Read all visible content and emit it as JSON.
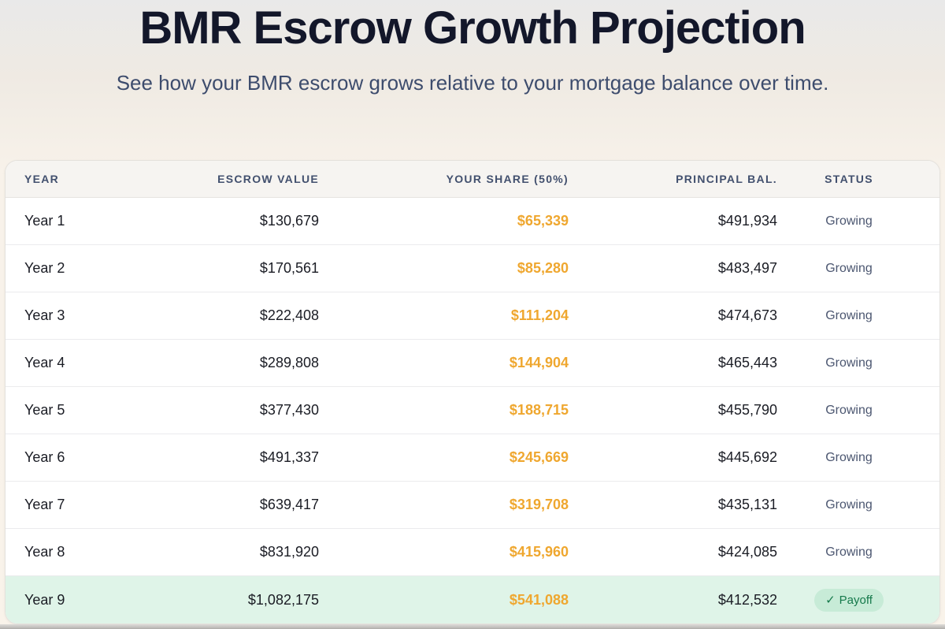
{
  "page": {
    "title": "BMR Escrow Growth Projection",
    "subtitle": "See how your BMR escrow grows relative to your mortgage balance over time."
  },
  "colors": {
    "share_amber": "#EFA72F",
    "payoff_green": "#15794B",
    "payoff_badge_bg": "#C7EBD7",
    "payoff_row_bg": "#DFF4E8",
    "header_text": "#42506E"
  },
  "table": {
    "columns": [
      "YEAR",
      "ESCROW VALUE",
      "YOUR SHARE (50%)",
      "PRINCIPAL BAL.",
      "STATUS"
    ],
    "rows": [
      {
        "year": "Year 1",
        "escrow": "$130,679",
        "share": "$65,339",
        "principal": "$491,934",
        "status": "Growing",
        "payoff": false
      },
      {
        "year": "Year 2",
        "escrow": "$170,561",
        "share": "$85,280",
        "principal": "$483,497",
        "status": "Growing",
        "payoff": false
      },
      {
        "year": "Year 3",
        "escrow": "$222,408",
        "share": "$111,204",
        "principal": "$474,673",
        "status": "Growing",
        "payoff": false
      },
      {
        "year": "Year 4",
        "escrow": "$289,808",
        "share": "$144,904",
        "principal": "$465,443",
        "status": "Growing",
        "payoff": false
      },
      {
        "year": "Year 5",
        "escrow": "$377,430",
        "share": "$188,715",
        "principal": "$455,790",
        "status": "Growing",
        "payoff": false
      },
      {
        "year": "Year 6",
        "escrow": "$491,337",
        "share": "$245,669",
        "principal": "$445,692",
        "status": "Growing",
        "payoff": false
      },
      {
        "year": "Year 7",
        "escrow": "$639,417",
        "share": "$319,708",
        "principal": "$435,131",
        "status": "Growing",
        "payoff": false
      },
      {
        "year": "Year 8",
        "escrow": "$831,920",
        "share": "$415,960",
        "principal": "$424,085",
        "status": "Growing",
        "payoff": false
      },
      {
        "year": "Year 9",
        "escrow": "$1,082,175",
        "share": "$541,088",
        "principal": "$412,532",
        "status": "Payoff",
        "payoff": true,
        "status_icon": "✓"
      }
    ]
  }
}
